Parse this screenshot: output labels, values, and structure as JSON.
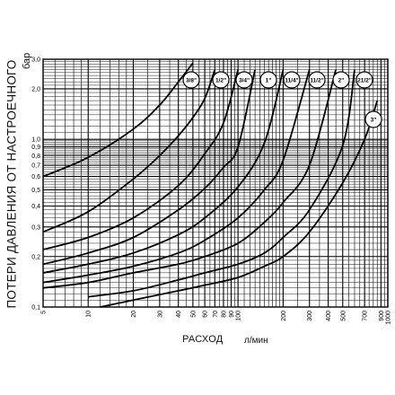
{
  "chart_data": {
    "type": "line",
    "title": "",
    "xlabel": "РАСХОД",
    "xunit": "л/мин",
    "ylabel": "ПОТЕРИ ДАВЛЕНИЯ ОТ НАСТРОЕЧНОГО",
    "yunit": "бар",
    "xscale": "log",
    "yscale": "log",
    "xlim": [
      5,
      1000
    ],
    "ylim": [
      0.1,
      3.0
    ],
    "grid": true,
    "x_ticks": [
      "5",
      "10",
      "20",
      "30",
      "40",
      "50",
      "60",
      "70",
      "80",
      "90",
      "100",
      "200",
      "300",
      "400",
      "500",
      "700",
      "900",
      "1000"
    ],
    "y_ticks": [
      "0,1",
      "0,2",
      "0,3",
      "0,4",
      "0,5",
      "0,6",
      "0,7",
      "0,8",
      "0,9",
      "1,0",
      "2,0",
      "3,0"
    ],
    "series": [
      {
        "name": "3/8\"",
        "x": [
          5,
          10,
          20,
          30,
          40,
          50
        ],
        "y": [
          0.6,
          0.78,
          1.15,
          1.6,
          2.2,
          2.85
        ]
      },
      {
        "name": "1/2\"",
        "x": [
          5,
          10,
          20,
          30,
          40,
          50,
          60,
          70
        ],
        "y": [
          0.28,
          0.37,
          0.58,
          0.8,
          1.05,
          1.35,
          1.75,
          2.6
        ]
      },
      {
        "name": "3/4\"",
        "x": [
          5,
          10,
          20,
          40,
          60,
          80,
          100
        ],
        "y": [
          0.22,
          0.26,
          0.34,
          0.53,
          0.82,
          1.25,
          2.6
        ]
      },
      {
        "name": "1\"",
        "x": [
          5,
          10,
          20,
          40,
          60,
          80,
          100,
          130
        ],
        "y": [
          0.18,
          0.21,
          0.26,
          0.38,
          0.51,
          0.68,
          0.9,
          2.6
        ]
      },
      {
        "name": "1 1/4\"",
        "x": [
          5,
          10,
          20,
          40,
          60,
          100,
          150,
          200
        ],
        "y": [
          0.16,
          0.18,
          0.21,
          0.27,
          0.34,
          0.52,
          0.95,
          2.6
        ]
      },
      {
        "name": "1 1/2\"",
        "x": [
          5,
          10,
          20,
          40,
          60,
          100,
          150,
          200,
          300
        ],
        "y": [
          0.14,
          0.155,
          0.175,
          0.21,
          0.25,
          0.34,
          0.5,
          0.75,
          2.6
        ]
      },
      {
        "name": "2\"",
        "x": [
          5,
          10,
          20,
          40,
          60,
          100,
          150,
          200,
          300,
          450
        ],
        "y": [
          0.13,
          0.14,
          0.16,
          0.18,
          0.2,
          0.24,
          0.32,
          0.42,
          0.7,
          2.6
        ]
      },
      {
        "name": "2 1/2\"",
        "x": [
          10,
          20,
          40,
          60,
          100,
          150,
          200,
          300,
          500,
          600
        ],
        "y": [
          0.115,
          0.125,
          0.145,
          0.16,
          0.18,
          0.21,
          0.26,
          0.38,
          0.92,
          2.6
        ]
      },
      {
        "name": "3\"",
        "x": [
          12,
          20,
          40,
          60,
          100,
          150,
          200,
          300,
          500,
          700,
          850
        ],
        "y": [
          0.1,
          0.11,
          0.125,
          0.135,
          0.15,
          0.175,
          0.2,
          0.28,
          0.55,
          1.0,
          1.7
        ]
      }
    ],
    "series_labels": [
      "3/8\"",
      "1/2\"",
      "3/4\"",
      "1\"",
      "11/4\"",
      "11/2\"",
      "2\"",
      "21/2\"",
      "3\""
    ]
  }
}
